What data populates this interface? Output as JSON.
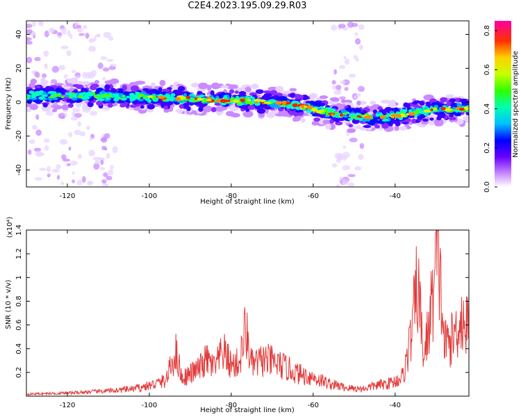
{
  "title": "C2E4.2023.195.09.29.R03",
  "chart_data": [
    {
      "type": "heatmap",
      "xlabel": "Height of straight line (km)",
      "ylabel": "Frequency (Hz)",
      "xlim": [
        -130,
        -22
      ],
      "ylim": [
        -50,
        48
      ],
      "x_ticks": [
        -120,
        -100,
        -80,
        -60,
        -40
      ],
      "y_ticks": [
        -40,
        -20,
        0,
        20,
        40
      ],
      "colorbar": {
        "label": "Normalized spectral amplitude",
        "range": [
          0.0,
          0.85
        ],
        "ticks": [
          0.0,
          0.2,
          0.4,
          0.6,
          0.8
        ]
      },
      "ridge": {
        "description_points": [
          {
            "x": -130,
            "y": 4
          },
          {
            "x": -115,
            "y": 4
          },
          {
            "x": -100,
            "y": 3
          },
          {
            "x": -90,
            "y": 2
          },
          {
            "x": -80,
            "y": 1
          },
          {
            "x": -70,
            "y": 0
          },
          {
            "x": -65,
            "y": -1
          },
          {
            "x": -60,
            "y": -4
          },
          {
            "x": -55,
            "y": -7
          },
          {
            "x": -50,
            "y": -8
          },
          {
            "x": -45,
            "y": -9
          },
          {
            "x": -40,
            "y": -8
          },
          {
            "x": -35,
            "y": -6
          },
          {
            "x": -30,
            "y": -4
          },
          {
            "x": -22,
            "y": -4
          }
        ]
      }
    },
    {
      "type": "line",
      "xlabel": "Height of straight line (km)",
      "ylabel": "SNR (10 * v/v)",
      "y_multiplier": "(x10⁴)",
      "xlim": [
        -130,
        -22
      ],
      "ylim": [
        0,
        1.4
      ],
      "x_ticks": [
        -120,
        -100,
        -80,
        -60,
        -40
      ],
      "y_ticks": [
        0.2,
        0.4,
        0.6,
        0.8,
        1.0,
        1.2,
        1.4
      ],
      "series": [
        {
          "color": "#e23b3b",
          "points": [
            [
              -130,
              0.02
            ],
            [
              -120,
              0.03
            ],
            [
              -110,
              0.05
            ],
            [
              -104,
              0.07
            ],
            [
              -100,
              0.1
            ],
            [
              -96,
              0.15
            ],
            [
              -93.5,
              0.42
            ],
            [
              -92,
              0.17
            ],
            [
              -88,
              0.26
            ],
            [
              -86,
              0.35
            ],
            [
              -84,
              0.27
            ],
            [
              -82,
              0.43
            ],
            [
              -80,
              0.3
            ],
            [
              -78,
              0.32
            ],
            [
              -76.5,
              0.65
            ],
            [
              -75,
              0.3
            ],
            [
              -72,
              0.35
            ],
            [
              -70,
              0.33
            ],
            [
              -67,
              0.28
            ],
            [
              -64,
              0.22
            ],
            [
              -60,
              0.18
            ],
            [
              -56,
              0.12
            ],
            [
              -52,
              0.08
            ],
            [
              -48,
              0.07
            ],
            [
              -45,
              0.1
            ],
            [
              -42,
              0.12
            ],
            [
              -40,
              0.14
            ],
            [
              -38,
              0.2
            ],
            [
              -36,
              0.6
            ],
            [
              -34.5,
              1.1
            ],
            [
              -33,
              0.35
            ],
            [
              -31,
              0.9
            ],
            [
              -29.5,
              1.4
            ],
            [
              -28,
              0.5
            ],
            [
              -26,
              0.55
            ],
            [
              -24,
              0.75
            ],
            [
              -22,
              0.65
            ]
          ]
        }
      ]
    }
  ]
}
